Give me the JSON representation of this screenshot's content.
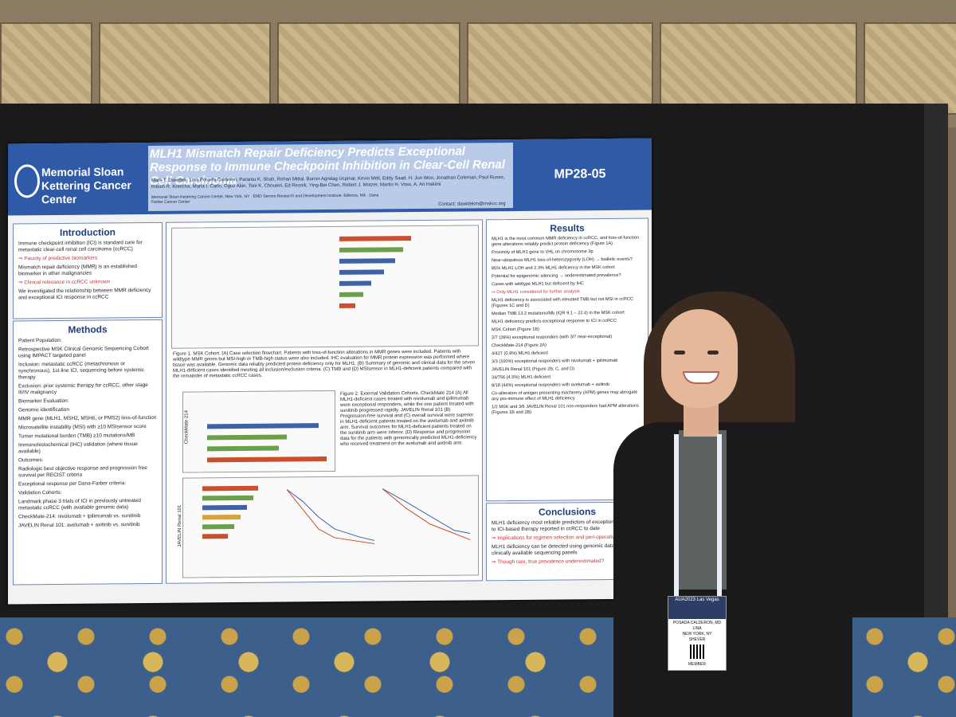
{
  "poster": {
    "institution": "Memorial Sloan Kettering Cancer Center",
    "title": "MLH1 Mismatch Repair Deficiency Predicts Exceptional Response to Immune Checkpoint Inhibition in Clear-Cell Renal Cell Carcinoma",
    "authors": "Mark T. Dawidek, Lina Posada Calderon, Parantu K. Shah, Rohan Mittal, Burcin Agridag Ucpinar, Kevin Meli, Eddy Saad, H. Jun Woo, Jonathan Coleman, Paul Russo, Ritesh R. Kotecha, Maria I. Carlo, Oguz Akin, Toni K. Choueiri, Ed Reznik, Ying-Bei Chen, Robert J. Motzer, Martin H. Voss, A. Ari Hakimi",
    "affiliations": "Memorial Sloan Kettering Cancer Center, New York, NY · EMD Serono Research and Development Institute, Billerica, MA · Dana Farber Cancer Center",
    "contact": "Contact: dawidekm@mskcc.org",
    "code": "MP28-05",
    "intro_title": "Introduction",
    "intro_points": [
      "Immune checkpoint inhibition (ICI) is standard care for metastatic clear-cell renal cell carcinoma (ccRCC)",
      "⇒ Paucity of predictive biomarkers",
      "Mismatch repair deficiency (MMR) is an established biomarker in other malignancies",
      "⇒ Clinical relevance in ccRCC unknown",
      "We investigated the relationship between MMR deficiency and exceptional ICI response in ccRCC"
    ],
    "methods_title": "Methods",
    "methods_points": [
      "Patient Population:",
      "Retrospective MSK Clinical Genomic Sequencing Cohort using IMPACT targeted panel",
      "Inclusion: metastatic ccRCC (metachronous or synchronous), 1st-line ICI, sequencing before systemic therapy",
      "Exclusion: prior systemic therapy for ccRCC, other stage III/IV malignancy",
      "Biomarker Evaluation:",
      "Genomic identification",
      "MMR gene (MLH1, MSH2, MSH6, or PMS2) loss-of-function",
      "Microsatellite instability (MSI) with ≥10 MSIsensor score",
      "Tumor mutational burden (TMB) ≥10 mutations/MB",
      "Immunohistochemical (IHC) validation (where tissue available)",
      "Outcomes:",
      "Radiologic best objective response and progression free survival per RECIST criteria",
      "Exceptional response per Dana-Farber criteria:",
      "Validation Cohorts:",
      "Landmark phase 3 trials of ICI in previously untreated metastatic ccRCC (with available genomic data)",
      "CheckMate-214: nivolumab + ipilimumab vs. sunitinib",
      "JAVELIN Renal 101: avelumab + axitinib vs. sunitinib"
    ],
    "fig1_caption": "Figure 1. MSK Cohort. (A) Case selection flowchart. Patients with loss-of-function alterations in MMR genes were included. Patients with wildtype MMR genes but MSI-high or TMB-high status were also included. IHC evaluation for MMR protein expression was performed where tissue was available. Genomic data reliably predicted protein deficiency only for MLH1. (B) Summary of genomic and clinical data for the seven MLH1-deficient cases identified meeting all inclusion/exclusion criteria. (C) TMB and (D) MSIsensor in MLH1-deficient patients compared with the remainder of metastatic ccRCC cases.",
    "fig2_caption": "Figure 2. External Validation Cohorts. CheckMate 214 (A) All MLH1-deficient cases treated with nivolumab and ipilimumab were exceptional responders, while the one patient treated with sunitinib progressed rapidly. JAVELIN Renal 101 (B) Progression-free survival and (C) overall survival were superior in MLH1-deficient patients treated on the avelumab and axitinib arm. Survival outcomes for MLH1-deficient patients treated on the sunitinib arm were inferior. (D) Response and progression data for the patients with genomically predicted MLH1-deficiency who received treatment on the avelumab and axitinib arm.",
    "checkmate_label": "CheckMate 214",
    "javelin_label": "JAVELIN Renal 101",
    "results_title": "Results",
    "results_points": [
      "MLH1 is the most common MMR deficiency in ccRCC, and loss-of-function gene alterations reliably predict protein deficiency (Figure 1A)",
      "Proximity of MLH1 gene to VHL on chromosome 3p",
      "Near-ubiquitous MLH1 loss-of-heterozygosity (LOH) → biallelic events?",
      "85% MLH1 LOH and 2.3% MLH1 deficiency in the MSK cohort",
      "Potential for epigenomic silencing → underestimated prevalence?",
      "Cases with wildtype MLH1 but deficient by IHC",
      "⇒ Only MLH1 considered for further analysis",
      "MLH1 deficiency is associated with elevated TMB but not MSI in ccRCC (Figures 1C and D)",
      "Median TMB 13.2 mutations/Mb (IQR 9.1 – 22.4) in the MSK cohort",
      "MLH1 deficiency predicts exceptional response to ICI in ccRCC",
      "MSK Cohort (Figure 1B)",
      "2/7 (29%) exceptional responders (with 3/7 near-exceptional)",
      "CheckMate-214 (Figure 2A)",
      "4/427 (0.9%) MLH1 deficient",
      "3/3 (100%) exceptional responders with nivolumab + ipilimumab",
      "JAVELIN Renal 101 (Figure 2B, C, and D)",
      "34/756 (4.5%) MLH1 deficient",
      "8/18 (44%) exceptional responders with avelumab + axitinib",
      "Co-alteration of antigen presenting machinery (APM) genes may abrogate any pro-immune effect of MLH1 deficiency",
      "1/2 MSK and 3/6 JAVELIN Renal 101 non-responders had APM alterations (Figures 1B and 2B)"
    ],
    "conclusions_title": "Conclusions",
    "conclusions_points": [
      "MLH1 deficiency most reliable predictors of exceptional response to ICI-based therapy reported in ccRCC to date",
      "⇒ Implications for regimen selection and peri-operative ICI",
      "MLH1 deficiency can be detected using genomic data included in clinically available sequencing panels",
      "⇒ Though rare, true prevalence underestimated?"
    ]
  },
  "badge": {
    "event": "AUA2023 Las Vegas",
    "name": "POSADA CALDERON, MD",
    "first": "LINA",
    "city": "NEW YORK, NY",
    "org": "SHEVER",
    "role": "MEMBER"
  }
}
